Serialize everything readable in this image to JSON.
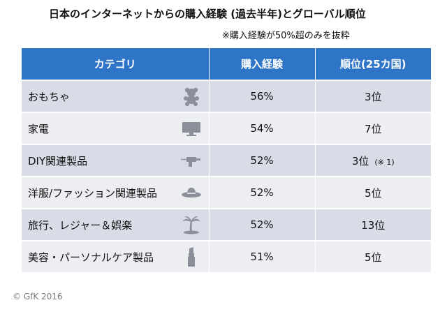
{
  "title": "日本のインターネットからの購入経験 (過去半年)とグローバル順位",
  "subtitle": "※購入経験が50%超のみを抜粋",
  "table": {
    "headers": [
      "カテゴリ",
      "購入経験",
      "順位(25カ国)"
    ],
    "rows": [
      {
        "category": "おもちゃ",
        "icon": "teddy-bear-icon",
        "value": "56%",
        "rank": "3位",
        "note": ""
      },
      {
        "category": "家電",
        "icon": "tv-icon",
        "value": "54%",
        "rank": "7位",
        "note": ""
      },
      {
        "category": "DIY関連製品",
        "icon": "drill-icon",
        "value": "52%",
        "rank": "3位",
        "note": "(※ 1)"
      },
      {
        "category": "洋服/ファッション関連製品",
        "icon": "hat-icon",
        "value": "52%",
        "rank": "5位",
        "note": ""
      },
      {
        "category": "旅行、レジャー＆娯楽",
        "icon": "palm-tree-icon",
        "value": "52%",
        "rank": "13位",
        "note": ""
      },
      {
        "category": "美容・パーソナルケア製品",
        "icon": "lipstick-icon",
        "value": "51%",
        "rank": "5位",
        "note": ""
      }
    ]
  },
  "copyright": "© GfK 2016",
  "colors": {
    "header": "#2e75c8",
    "row_dark": "#d8dce6",
    "row_light": "#edeef2",
    "icon": "#8a8f99"
  }
}
